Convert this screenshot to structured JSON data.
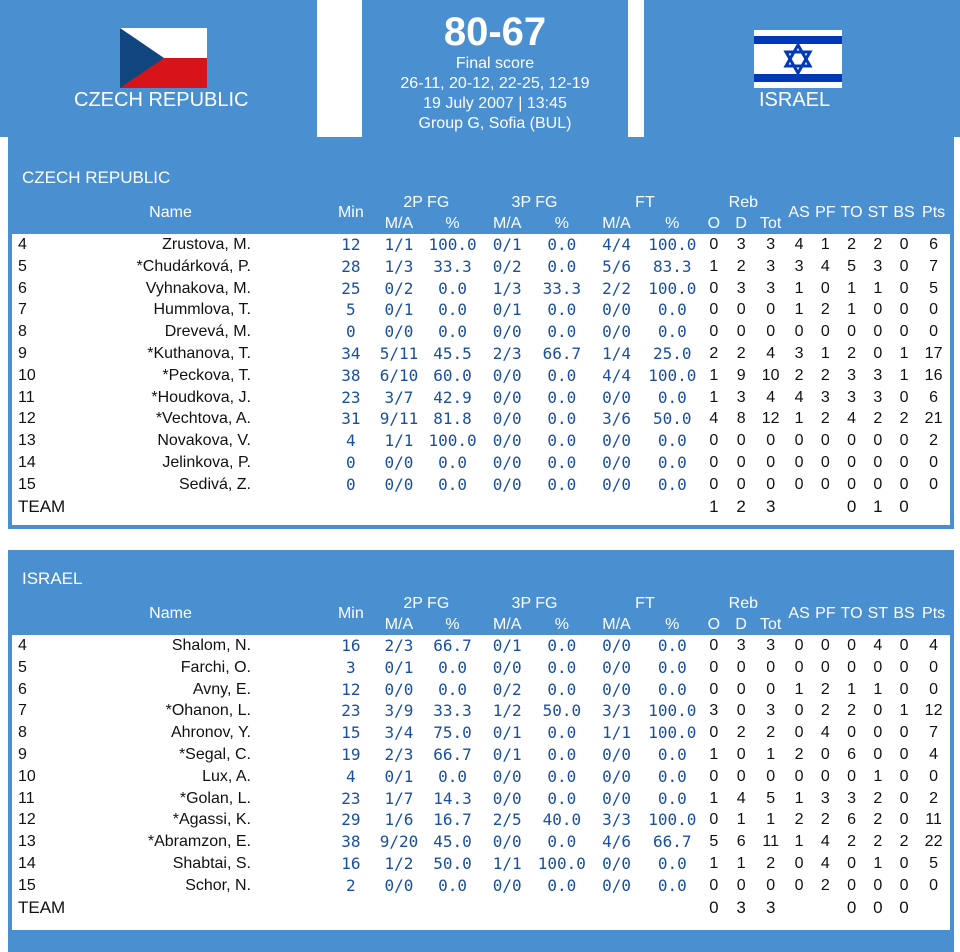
{
  "header": {
    "home_team": "CZECH REPUBLIC",
    "away_team": "ISRAEL",
    "score": "80-67",
    "status": "Final score",
    "quarters": "26-11, 20-12, 22-25, 12-19",
    "date_time": "19 July 2007 | 13:45",
    "group": "Group G, Sofia (BUL)"
  },
  "colors": {
    "header_blue": "#4a8fd0",
    "number_blue": "#1a4fa0"
  },
  "columns": {
    "name": "Name",
    "min": "Min",
    "fg2": "2P FG",
    "fg3": "3P FG",
    "ft": "FT",
    "reb": "Reb",
    "ma": "M/A",
    "pct": "%",
    "o": "O",
    "d": "D",
    "tot": "Tot",
    "as": "AS",
    "pf": "PF",
    "to": "TO",
    "st": "ST",
    "bs": "BS",
    "pts": "Pts"
  },
  "teams": [
    {
      "title": "CZECH REPUBLIC",
      "players": [
        [
          "4",
          "Zrustova, M.",
          "12",
          "1/1",
          "100.0",
          "0/1",
          "0.0",
          "4/4",
          "100.0",
          "0",
          "3",
          "3",
          "4",
          "1",
          "2",
          "2",
          "0",
          "6"
        ],
        [
          "5",
          "*Chudárková, P.",
          "28",
          "1/3",
          "33.3",
          "0/2",
          "0.0",
          "5/6",
          "83.3",
          "1",
          "2",
          "3",
          "3",
          "4",
          "5",
          "3",
          "0",
          "7"
        ],
        [
          "6",
          "Vyhnakova, M.",
          "25",
          "0/2",
          "0.0",
          "1/3",
          "33.3",
          "2/2",
          "100.0",
          "0",
          "3",
          "3",
          "1",
          "0",
          "1",
          "1",
          "0",
          "5"
        ],
        [
          "7",
          "Hummlova, T.",
          "5",
          "0/1",
          "0.0",
          "0/1",
          "0.0",
          "0/0",
          "0.0",
          "0",
          "0",
          "0",
          "1",
          "2",
          "1",
          "0",
          "0",
          "0"
        ],
        [
          "8",
          "Drevevá, M.",
          "0",
          "0/0",
          "0.0",
          "0/0",
          "0.0",
          "0/0",
          "0.0",
          "0",
          "0",
          "0",
          "0",
          "0",
          "0",
          "0",
          "0",
          "0"
        ],
        [
          "9",
          "*Kuthanova, T.",
          "34",
          "5/11",
          "45.5",
          "2/3",
          "66.7",
          "1/4",
          "25.0",
          "2",
          "2",
          "4",
          "3",
          "1",
          "2",
          "0",
          "1",
          "17"
        ],
        [
          "10",
          "*Peckova, T.",
          "38",
          "6/10",
          "60.0",
          "0/0",
          "0.0",
          "4/4",
          "100.0",
          "1",
          "9",
          "10",
          "2",
          "2",
          "3",
          "3",
          "1",
          "16"
        ],
        [
          "11",
          "*Houdkova, J.",
          "23",
          "3/7",
          "42.9",
          "0/0",
          "0.0",
          "0/0",
          "0.0",
          "1",
          "3",
          "4",
          "4",
          "3",
          "3",
          "3",
          "0",
          "6"
        ],
        [
          "12",
          "*Vechtova, A.",
          "31",
          "9/11",
          "81.8",
          "0/0",
          "0.0",
          "3/6",
          "50.0",
          "4",
          "8",
          "12",
          "1",
          "2",
          "4",
          "2",
          "2",
          "21"
        ],
        [
          "13",
          "Novakova, V.",
          "4",
          "1/1",
          "100.0",
          "0/0",
          "0.0",
          "0/0",
          "0.0",
          "0",
          "0",
          "0",
          "0",
          "0",
          "0",
          "0",
          "0",
          "2"
        ],
        [
          "14",
          "Jelinkova, P.",
          "0",
          "0/0",
          "0.0",
          "0/0",
          "0.0",
          "0/0",
          "0.0",
          "0",
          "0",
          "0",
          "0",
          "0",
          "0",
          "0",
          "0",
          "0"
        ],
        [
          "15",
          "Sedivá, Z.",
          "0",
          "0/0",
          "0.0",
          "0/0",
          "0.0",
          "0/0",
          "0.0",
          "0",
          "0",
          "0",
          "0",
          "0",
          "0",
          "0",
          "0",
          "0"
        ]
      ],
      "team_row": {
        "label": "TEAM",
        "o": "1",
        "d": "2",
        "tot": "3",
        "to": "0",
        "st": "1",
        "bs": "0"
      }
    },
    {
      "title": "ISRAEL",
      "players": [
        [
          "4",
          "Shalom, N.",
          "16",
          "2/3",
          "66.7",
          "0/1",
          "0.0",
          "0/0",
          "0.0",
          "0",
          "3",
          "3",
          "0",
          "0",
          "0",
          "4",
          "0",
          "4"
        ],
        [
          "5",
          "Farchi, O.",
          "3",
          "0/1",
          "0.0",
          "0/0",
          "0.0",
          "0/0",
          "0.0",
          "0",
          "0",
          "0",
          "0",
          "0",
          "0",
          "0",
          "0",
          "0"
        ],
        [
          "6",
          "Avny, E.",
          "12",
          "0/0",
          "0.0",
          "0/2",
          "0.0",
          "0/0",
          "0.0",
          "0",
          "0",
          "0",
          "1",
          "2",
          "1",
          "1",
          "0",
          "0"
        ],
        [
          "7",
          "*Ohanon, L.",
          "23",
          "3/9",
          "33.3",
          "1/2",
          "50.0",
          "3/3",
          "100.0",
          "3",
          "0",
          "3",
          "0",
          "2",
          "2",
          "0",
          "1",
          "12"
        ],
        [
          "8",
          "Ahronov, Y.",
          "15",
          "3/4",
          "75.0",
          "0/1",
          "0.0",
          "1/1",
          "100.0",
          "0",
          "2",
          "2",
          "0",
          "4",
          "0",
          "0",
          "0",
          "7"
        ],
        [
          "9",
          "*Segal, C.",
          "19",
          "2/3",
          "66.7",
          "0/1",
          "0.0",
          "0/0",
          "0.0",
          "1",
          "0",
          "1",
          "2",
          "0",
          "6",
          "0",
          "0",
          "4"
        ],
        [
          "10",
          "Lux, A.",
          "4",
          "0/1",
          "0.0",
          "0/0",
          "0.0",
          "0/0",
          "0.0",
          "0",
          "0",
          "0",
          "0",
          "0",
          "0",
          "1",
          "0",
          "0"
        ],
        [
          "11",
          "*Golan, L.",
          "23",
          "1/7",
          "14.3",
          "0/0",
          "0.0",
          "0/0",
          "0.0",
          "1",
          "4",
          "5",
          "1",
          "3",
          "3",
          "2",
          "0",
          "2"
        ],
        [
          "12",
          "*Agassi, K.",
          "29",
          "1/6",
          "16.7",
          "2/5",
          "40.0",
          "3/3",
          "100.0",
          "0",
          "1",
          "1",
          "2",
          "2",
          "6",
          "2",
          "0",
          "11"
        ],
        [
          "13",
          "*Abramzon, E.",
          "38",
          "9/20",
          "45.0",
          "0/0",
          "0.0",
          "4/6",
          "66.7",
          "5",
          "6",
          "11",
          "1",
          "4",
          "2",
          "2",
          "2",
          "22"
        ],
        [
          "14",
          "Shabtai, S.",
          "16",
          "1/2",
          "50.0",
          "1/1",
          "100.0",
          "0/0",
          "0.0",
          "1",
          "1",
          "2",
          "0",
          "4",
          "0",
          "1",
          "0",
          "5"
        ],
        [
          "15",
          "Schor, N.",
          "2",
          "0/0",
          "0.0",
          "0/0",
          "0.0",
          "0/0",
          "0.0",
          "0",
          "0",
          "0",
          "0",
          "2",
          "0",
          "0",
          "0",
          "0"
        ]
      ],
      "team_row": {
        "label": "TEAM",
        "o": "0",
        "d": "3",
        "tot": "3",
        "to": "0",
        "st": "0",
        "bs": "0"
      }
    }
  ]
}
